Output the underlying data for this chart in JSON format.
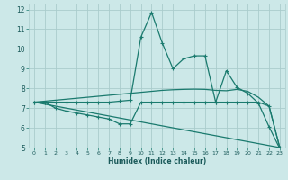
{
  "xlabel": "Humidex (Indice chaleur)",
  "bg_color": "#cce8e8",
  "grid_color": "#aacccc",
  "line_color": "#1a7a6e",
  "xlim": [
    -0.5,
    23.5
  ],
  "ylim": [
    5,
    12.3
  ],
  "xticks": [
    0,
    1,
    2,
    3,
    4,
    5,
    6,
    7,
    8,
    9,
    10,
    11,
    12,
    13,
    14,
    15,
    16,
    17,
    18,
    19,
    20,
    21,
    22,
    23
  ],
  "yticks": [
    5,
    6,
    7,
    8,
    9,
    10,
    11,
    12
  ],
  "series": [
    {
      "x": [
        0,
        1,
        2,
        3,
        4,
        5,
        6,
        7,
        8,
        9,
        10,
        11,
        12,
        13,
        14,
        15,
        16,
        17,
        18,
        19,
        20,
        21,
        22,
        23
      ],
      "y": [
        7.3,
        7.3,
        7.3,
        7.3,
        7.3,
        7.3,
        7.3,
        7.3,
        7.35,
        7.4,
        10.6,
        11.85,
        10.3,
        9.0,
        9.5,
        9.65,
        9.65,
        7.3,
        8.9,
        8.05,
        7.75,
        7.25,
        6.05,
        4.95
      ],
      "marker": true,
      "lw": 0.9
    },
    {
      "x": [
        0,
        1,
        2,
        3,
        4,
        5,
        6,
        7,
        8,
        9,
        10,
        11,
        12,
        13,
        14,
        15,
        16,
        17,
        18,
        19,
        20,
        21,
        22,
        23
      ],
      "y": [
        7.3,
        7.35,
        7.4,
        7.45,
        7.5,
        7.55,
        7.6,
        7.65,
        7.7,
        7.75,
        7.8,
        7.85,
        7.9,
        7.93,
        7.95,
        7.96,
        7.95,
        7.9,
        7.88,
        7.95,
        7.85,
        7.55,
        7.1,
        5.0
      ],
      "marker": false,
      "lw": 0.9
    },
    {
      "x": [
        0,
        1,
        2,
        3,
        4,
        5,
        6,
        7,
        8,
        9,
        10,
        11,
        12,
        13,
        14,
        15,
        16,
        17,
        18,
        19,
        20,
        21,
        22,
        23
      ],
      "y": [
        7.3,
        7.3,
        7.0,
        6.85,
        6.75,
        6.65,
        6.55,
        6.45,
        6.2,
        6.2,
        7.3,
        7.3,
        7.3,
        7.3,
        7.3,
        7.3,
        7.3,
        7.3,
        7.3,
        7.3,
        7.3,
        7.3,
        7.1,
        5.0
      ],
      "marker": true,
      "lw": 0.9
    },
    {
      "x": [
        0,
        1,
        2,
        3,
        4,
        5,
        6,
        7,
        8,
        9,
        10,
        11,
        12,
        13,
        14,
        15,
        16,
        17,
        18,
        19,
        20,
        21,
        22,
        23
      ],
      "y": [
        7.3,
        7.2,
        7.1,
        7.0,
        6.9,
        6.8,
        6.7,
        6.6,
        6.5,
        6.4,
        6.3,
        6.2,
        6.1,
        6.0,
        5.9,
        5.8,
        5.7,
        5.6,
        5.5,
        5.4,
        5.3,
        5.2,
        5.1,
        5.0
      ],
      "marker": false,
      "lw": 0.9
    }
  ]
}
